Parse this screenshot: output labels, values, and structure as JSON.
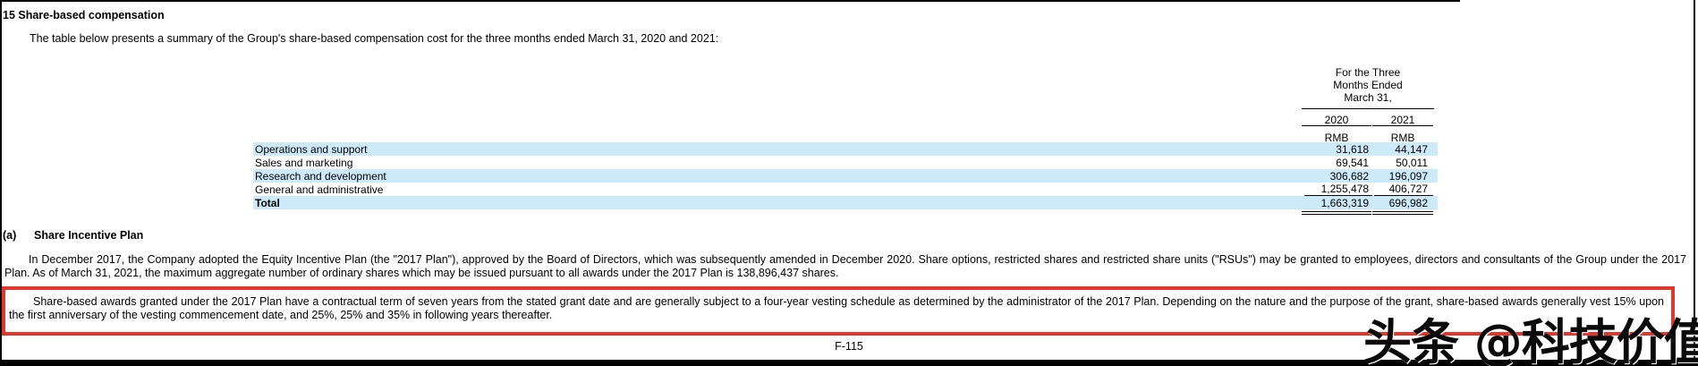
{
  "page": {
    "section_title": "15 Share-based compensation",
    "intro": "The table below presents a summary of the Group's share-based compensation cost for the three months ended March 31, 2020 and 2021:",
    "page_number": "F-115",
    "watermark": "头条 @科技价值"
  },
  "table": {
    "period_header_lines": [
      "For the Three",
      "Months Ended",
      "March 31,"
    ],
    "year_columns": [
      "2020",
      "2021"
    ],
    "currency_labels": [
      "RMB",
      "RMB"
    ],
    "rows": [
      {
        "label": "Operations and support",
        "y2020": "31,618",
        "y2021": "44,147"
      },
      {
        "label": "Sales and marketing",
        "y2020": "69,541",
        "y2021": "50,011"
      },
      {
        "label": "Research and development",
        "y2020": "306,682",
        "y2021": "196,097"
      },
      {
        "label": "General and administrative",
        "y2020": "1,255,478",
        "y2021": "406,727"
      },
      {
        "label": "Total",
        "y2020": "1,663,319",
        "y2021": "696,982"
      }
    ]
  },
  "section_a": {
    "marker": "(a)",
    "title": "Share Incentive Plan",
    "paragraph": "In December 2017, the Company adopted the Equity Incentive Plan (the \"2017 Plan\"), approved by the Board of Directors, which was subsequently amended in December 2020. Share options, restricted shares and restricted share units (\"RSUs\") may be granted to employees, directors and consultants of the Group under the 2017 Plan. As of March 31, 2021, the maximum aggregate number of ordinary shares which may be issued pursuant to all awards under the 2017 Plan is 138,896,437 shares."
  },
  "highlight": {
    "paragraph": "Share-based awards granted under the 2017 Plan have a contractual term of seven years from the stated grant date and are generally subject to a four-year vesting schedule as determined by the administrator of the 2017 Plan. Depending on the nature and the purpose of the grant, share-based awards generally vest 15% upon the first anniversary of the vesting commencement date, and 25%, 25% and 35% in following years thereafter."
  },
  "colors": {
    "row_highlight": "#cdeafa",
    "highlight_box_border": "#e0382c",
    "watermark_color": "#0a0a0a"
  }
}
